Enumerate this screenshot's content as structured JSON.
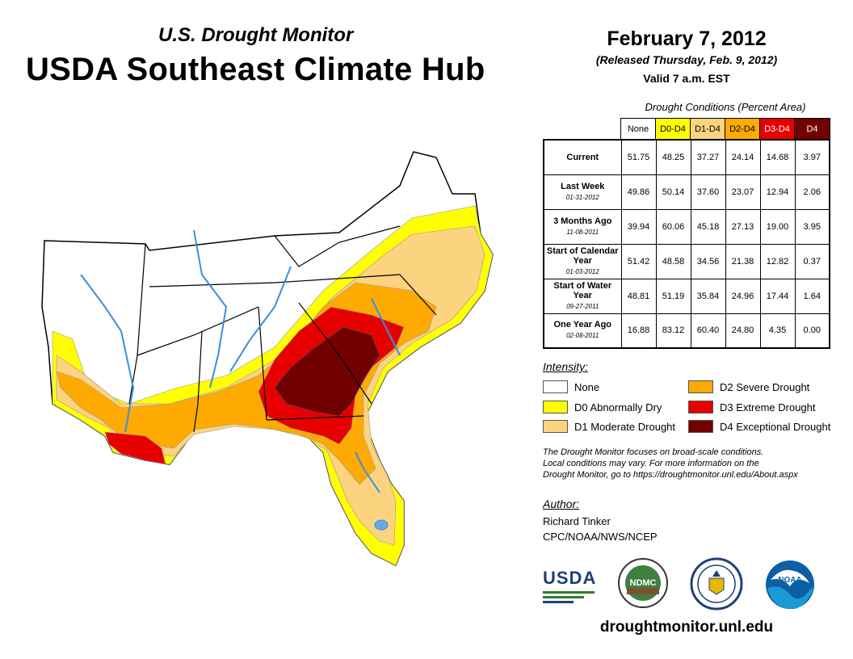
{
  "header": {
    "subtitle": "U.S. Drought Monitor",
    "title": "USDA Southeast Climate Hub",
    "date": "February 7, 2012",
    "released": "(Released Thursday, Feb. 9, 2012)",
    "valid": "Valid 7 a.m. EST"
  },
  "table": {
    "caption": "Drought Conditions (Percent Area)",
    "columns": [
      {
        "label": "None",
        "color": "#ffffff"
      },
      {
        "label": "D0-D4",
        "color": "#ffff00"
      },
      {
        "label": "D1-D4",
        "color": "#fcd37f"
      },
      {
        "label": "D2-D4",
        "color": "#ffaa00"
      },
      {
        "label": "D3-D4",
        "color": "#e60000"
      },
      {
        "label": "D4",
        "color": "#730000"
      }
    ],
    "rows": [
      {
        "label": "Current",
        "date": "",
        "values": [
          "51.75",
          "48.25",
          "37.27",
          "24.14",
          "14.68",
          "3.97"
        ]
      },
      {
        "label": "Last Week",
        "date": "01-31-2012",
        "values": [
          "49.86",
          "50.14",
          "37.60",
          "23.07",
          "12.94",
          "2.06"
        ]
      },
      {
        "label": "3 Months Ago",
        "date": "11-08-2011",
        "values": [
          "39.94",
          "60.06",
          "45.18",
          "27.13",
          "19.00",
          "3.95"
        ]
      },
      {
        "label": "Start of Calendar Year",
        "date": "01-03-2012",
        "values": [
          "51.42",
          "48.58",
          "34.56",
          "21.38",
          "12.82",
          "0.37"
        ]
      },
      {
        "label": "Start of Water Year",
        "date": "09-27-2011",
        "values": [
          "48.81",
          "51.19",
          "35.84",
          "24.96",
          "17.44",
          "1.64"
        ]
      },
      {
        "label": "One Year Ago",
        "date": "02-08-2011",
        "values": [
          "16.88",
          "83.12",
          "60.40",
          "24.80",
          "4.35",
          "0.00"
        ]
      }
    ]
  },
  "legend": {
    "heading": "Intensity:",
    "items": [
      {
        "label": "None",
        "color": "#ffffff"
      },
      {
        "label": "D0 Abnormally Dry",
        "color": "#ffff00"
      },
      {
        "label": "D1 Moderate Drought",
        "color": "#fcd37f"
      },
      {
        "label": "D2 Severe Drought",
        "color": "#ffaa00"
      },
      {
        "label": "D3 Extreme Drought",
        "color": "#e60000"
      },
      {
        "label": "D4 Exceptional Drought",
        "color": "#730000"
      }
    ]
  },
  "note": {
    "line1": "The Drought Monitor focuses on broad-scale conditions.",
    "line2": "Local conditions may vary. For more information on the",
    "line3": "Drought Monitor, go to https://droughtmonitor.unl.edu/About.aspx"
  },
  "author": {
    "heading": "Author:",
    "name": "Richard Tinker",
    "org": "CPC/NOAA/NWS/NCEP"
  },
  "logos": {
    "usda": "USDA",
    "ndmc": "NDMC",
    "noaa": "NOAA"
  },
  "footer": {
    "url": "droughtmonitor.unl.edu"
  }
}
